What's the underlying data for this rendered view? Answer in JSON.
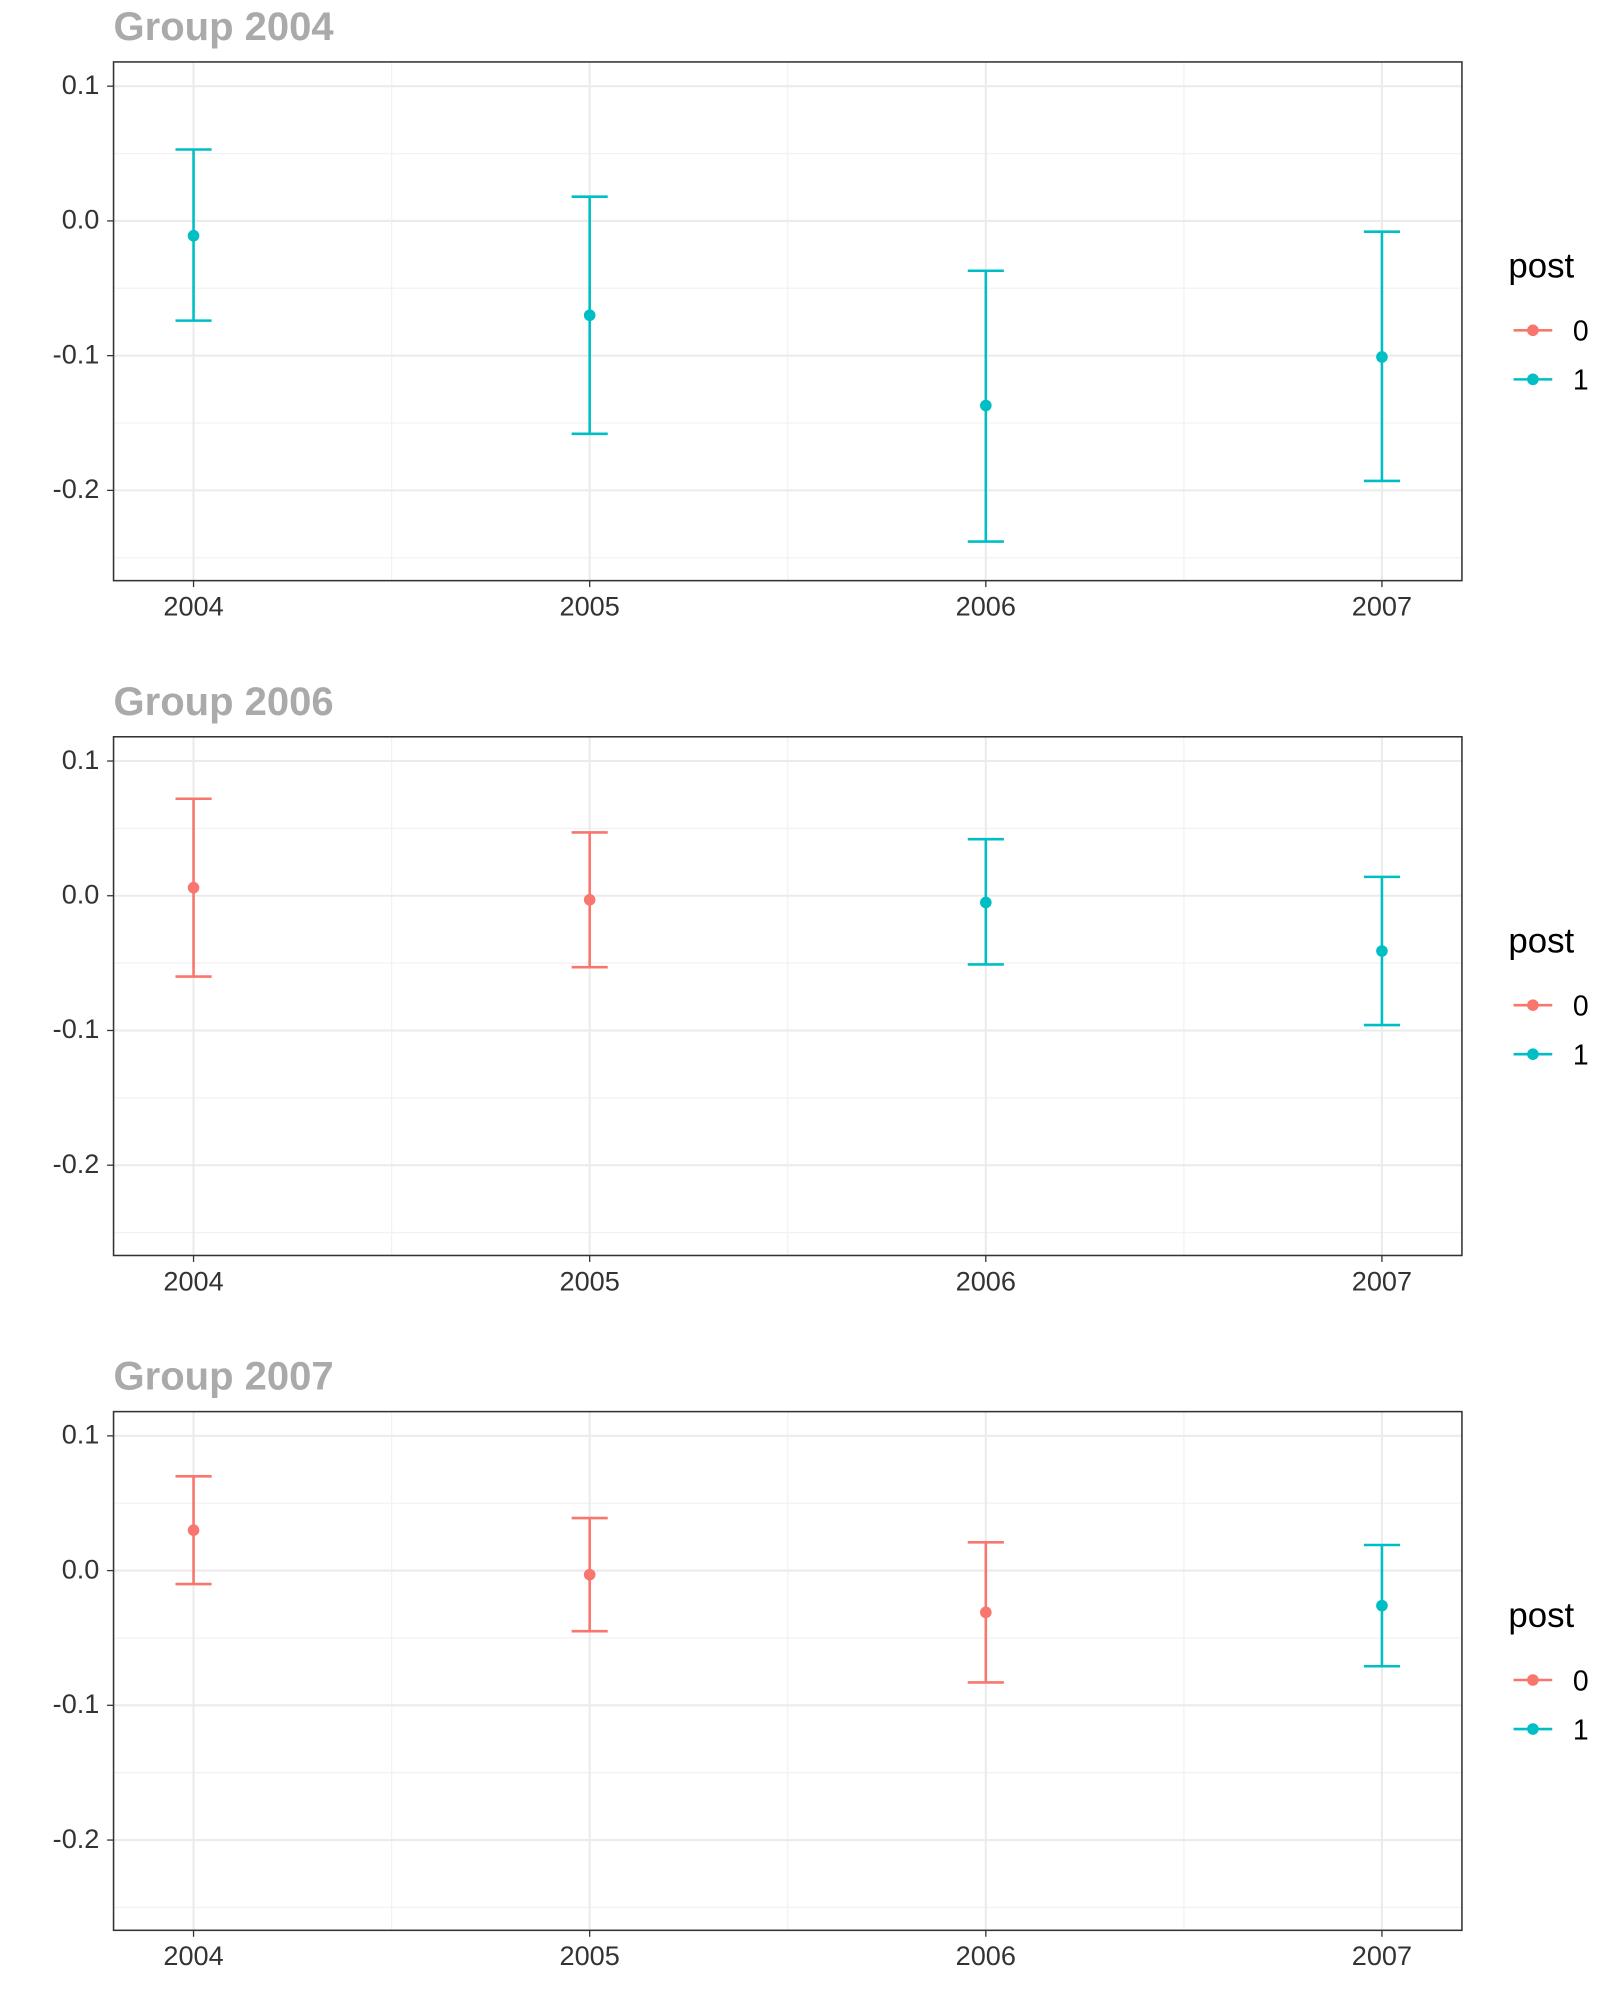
{
  "chart_data": [
    {
      "type": "scatter",
      "title": "Group 2004",
      "xlabel": "",
      "ylabel": "",
      "x_ticks": [
        "2004",
        "2005",
        "2006",
        "2007"
      ],
      "y_ticks": [
        "0.1",
        "0.0",
        "-0.1",
        "-0.2"
      ],
      "ylim": [
        -0.267,
        0.118
      ],
      "legend": {
        "title": "post",
        "entries": [
          "0",
          "1"
        ],
        "colors": [
          "#f8766d",
          "#00bfc4"
        ],
        "position": "right"
      },
      "points": [
        {
          "x": "2004",
          "y": -0.011,
          "ymin": -0.074,
          "ymax": 0.053,
          "post": "1"
        },
        {
          "x": "2005",
          "y": -0.07,
          "ymin": -0.158,
          "ymax": 0.018,
          "post": "1"
        },
        {
          "x": "2006",
          "y": -0.137,
          "ymin": -0.238,
          "ymax": -0.037,
          "post": "1"
        },
        {
          "x": "2007",
          "y": -0.101,
          "ymin": -0.193,
          "ymax": -0.008,
          "post": "1"
        }
      ]
    },
    {
      "type": "scatter",
      "title": "Group 2006",
      "xlabel": "",
      "ylabel": "",
      "x_ticks": [
        "2004",
        "2005",
        "2006",
        "2007"
      ],
      "y_ticks": [
        "0.1",
        "0.0",
        "-0.1",
        "-0.2"
      ],
      "ylim": [
        -0.267,
        0.118
      ],
      "legend": {
        "title": "post",
        "entries": [
          "0",
          "1"
        ],
        "colors": [
          "#f8766d",
          "#00bfc4"
        ],
        "position": "right"
      },
      "points": [
        {
          "x": "2004",
          "y": 0.006,
          "ymin": -0.06,
          "ymax": 0.072,
          "post": "0"
        },
        {
          "x": "2005",
          "y": -0.003,
          "ymin": -0.053,
          "ymax": 0.047,
          "post": "0"
        },
        {
          "x": "2006",
          "y": -0.005,
          "ymin": -0.051,
          "ymax": 0.042,
          "post": "1"
        },
        {
          "x": "2007",
          "y": -0.041,
          "ymin": -0.096,
          "ymax": 0.014,
          "post": "1"
        }
      ]
    },
    {
      "type": "scatter",
      "title": "Group 2007",
      "xlabel": "",
      "ylabel": "",
      "x_ticks": [
        "2004",
        "2005",
        "2006",
        "2007"
      ],
      "y_ticks": [
        "0.1",
        "0.0",
        "-0.1",
        "-0.2"
      ],
      "ylim": [
        -0.267,
        0.118
      ],
      "legend": {
        "title": "post",
        "entries": [
          "0",
          "1"
        ],
        "colors": [
          "#f8766d",
          "#00bfc4"
        ],
        "position": "right"
      },
      "points": [
        {
          "x": "2004",
          "y": 0.03,
          "ymin": -0.01,
          "ymax": 0.07,
          "post": "0"
        },
        {
          "x": "2005",
          "y": -0.003,
          "ymin": -0.045,
          "ymax": 0.039,
          "post": "0"
        },
        {
          "x": "2006",
          "y": -0.031,
          "ymin": -0.083,
          "ymax": 0.021,
          "post": "0"
        },
        {
          "x": "2007",
          "y": -0.026,
          "ymin": -0.071,
          "ymax": 0.019,
          "post": "1"
        }
      ]
    }
  ]
}
